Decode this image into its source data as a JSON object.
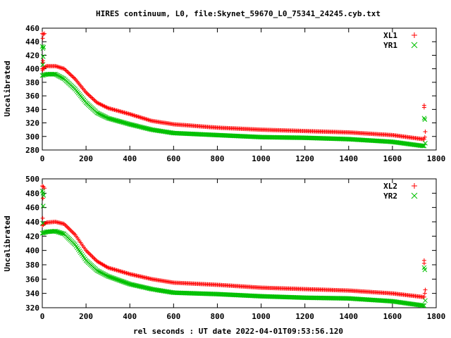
{
  "title": "HIRES continuum, L0, file:Skynet_59670_L0_75341_24245.cyb.txt",
  "xlabel": "rel seconds : UT date 2022-04-01T09:53:56.120",
  "colors": {
    "red": "#ff0000",
    "green": "#00c000"
  },
  "chart_data": [
    {
      "type": "scatter",
      "ylabel": "Uncalibrated",
      "xlim": [
        0,
        1800
      ],
      "ylim": [
        280,
        460
      ],
      "x_ticks": [
        "0",
        "200",
        "400",
        "600",
        "800",
        "1000",
        "1200",
        "1400",
        "1600",
        "1800"
      ],
      "y_ticks": [
        "280",
        "300",
        "320",
        "340",
        "360",
        "380",
        "400",
        "420",
        "440",
        "460"
      ],
      "legend_position": "top-right",
      "series": [
        {
          "name": "XL1",
          "color": "#ff0000",
          "marker": "+",
          "curve": [
            [
              0,
              400
            ],
            [
              20,
              404
            ],
            [
              60,
              404
            ],
            [
              100,
              400
            ],
            [
              150,
              385
            ],
            [
              200,
              365
            ],
            [
              250,
              350
            ],
            [
              300,
              342
            ],
            [
              400,
              333
            ],
            [
              500,
              323
            ],
            [
              600,
              318
            ],
            [
              800,
              313
            ],
            [
              1000,
              310
            ],
            [
              1200,
              308
            ],
            [
              1400,
              306
            ],
            [
              1600,
              302
            ],
            [
              1740,
              296
            ]
          ],
          "outliers": [
            [
              0,
              452
            ],
            [
              5,
              451
            ],
            [
              10,
              452
            ],
            [
              2,
              445
            ],
            [
              3,
              412
            ],
            [
              4,
              409
            ],
            [
              2,
              398
            ],
            [
              1745,
              346
            ],
            [
              1745,
              343
            ],
            [
              1750,
              307
            ],
            [
              1748,
              299
            ]
          ]
        },
        {
          "name": "YR1",
          "color": "#00c000",
          "marker": "x",
          "curve": [
            [
              0,
              390
            ],
            [
              20,
              392
            ],
            [
              60,
              392
            ],
            [
              100,
              385
            ],
            [
              150,
              370
            ],
            [
              200,
              350
            ],
            [
              250,
              335
            ],
            [
              300,
              327
            ],
            [
              400,
              318
            ],
            [
              500,
              310
            ],
            [
              600,
              305
            ],
            [
              800,
              302
            ],
            [
              1000,
              299
            ],
            [
              1200,
              298
            ],
            [
              1400,
              296
            ],
            [
              1600,
              292
            ],
            [
              1740,
              286
            ]
          ],
          "outliers": [
            [
              0,
              433
            ],
            [
              3,
              430
            ],
            [
              6,
              432
            ],
            [
              4,
              418
            ],
            [
              2,
              406
            ],
            [
              1745,
              327
            ],
            [
              1748,
              325
            ],
            [
              1750,
              290
            ]
          ]
        }
      ]
    },
    {
      "type": "scatter",
      "ylabel": "Uncalibrated",
      "xlim": [
        0,
        1800
      ],
      "ylim": [
        320,
        500
      ],
      "x_ticks": [
        "0",
        "200",
        "400",
        "600",
        "800",
        "1000",
        "1200",
        "1400",
        "1600",
        "1800"
      ],
      "y_ticks": [
        "320",
        "340",
        "360",
        "380",
        "400",
        "420",
        "440",
        "460",
        "480",
        "500"
      ],
      "legend_position": "top-right",
      "series": [
        {
          "name": "XL2",
          "color": "#ff0000",
          "marker": "+",
          "curve": [
            [
              0,
              435
            ],
            [
              20,
              439
            ],
            [
              60,
              440
            ],
            [
              100,
              437
            ],
            [
              150,
              422
            ],
            [
              200,
              400
            ],
            [
              250,
              385
            ],
            [
              300,
              376
            ],
            [
              400,
              367
            ],
            [
              500,
              360
            ],
            [
              600,
              355
            ],
            [
              800,
              352
            ],
            [
              1000,
              348
            ],
            [
              1200,
              346
            ],
            [
              1400,
              344
            ],
            [
              1600,
              340
            ],
            [
              1740,
              335
            ]
          ],
          "outliers": [
            [
              0,
              490
            ],
            [
              5,
              489
            ],
            [
              10,
              487
            ],
            [
              3,
              473
            ],
            [
              2,
              445
            ],
            [
              1745,
              386
            ],
            [
              1745,
              382
            ],
            [
              1750,
              345
            ],
            [
              1748,
              340
            ]
          ]
        },
        {
          "name": "YR2",
          "color": "#00c000",
          "marker": "x",
          "curve": [
            [
              0,
              424
            ],
            [
              20,
              426
            ],
            [
              60,
              427
            ],
            [
              100,
              423
            ],
            [
              150,
              408
            ],
            [
              200,
              386
            ],
            [
              250,
              372
            ],
            [
              300,
              364
            ],
            [
              400,
              353
            ],
            [
              500,
              346
            ],
            [
              600,
              341
            ],
            [
              800,
              339
            ],
            [
              1000,
              336
            ],
            [
              1200,
              334
            ],
            [
              1400,
              333
            ],
            [
              1600,
              329
            ],
            [
              1740,
              323
            ]
          ],
          "outliers": [
            [
              0,
              483
            ],
            [
              3,
              480
            ],
            [
              6,
              477
            ],
            [
              4,
              462
            ],
            [
              2,
              438
            ],
            [
              1745,
              376
            ],
            [
              1748,
              373
            ],
            [
              1750,
              330
            ]
          ]
        }
      ]
    }
  ]
}
